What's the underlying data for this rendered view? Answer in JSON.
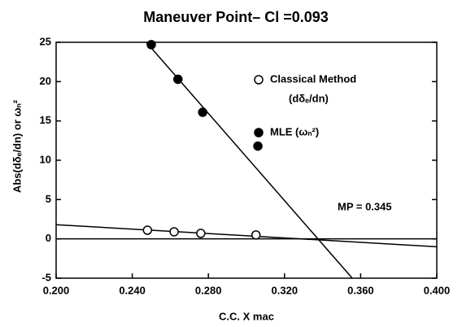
{
  "chart_data": {
    "type": "scatter",
    "title": "Maneuver Point– Cl =0.093",
    "xlabel": "C.C. X mac",
    "ylabel": "Abs(dδₑ/dn) or ωₙ²",
    "xlim": [
      0.2,
      0.4
    ],
    "ylim": [
      -5,
      25
    ],
    "xticks": [
      {
        "value": 0.2,
        "label": "0.200"
      },
      {
        "value": 0.24,
        "label": "0.240"
      },
      {
        "value": 0.28,
        "label": "0.280"
      },
      {
        "value": 0.32,
        "label": "0.320"
      },
      {
        "value": 0.36,
        "label": "0.360"
      },
      {
        "value": 0.4,
        "label": "0.400"
      }
    ],
    "yticks": [
      -5,
      0,
      5,
      10,
      15,
      20,
      25
    ],
    "series": [
      {
        "name": "Classical Method",
        "name_sub": "(dδₑ/dn)",
        "color": "#000000",
        "marker": "open",
        "x": [
          0.248,
          0.262,
          0.276,
          0.305
        ],
        "values": [
          1.1,
          0.9,
          0.7,
          0.5
        ]
      },
      {
        "name": "MLE (ωₙ²)",
        "color": "#000000",
        "marker": "filled",
        "x": [
          0.25,
          0.264,
          0.277,
          0.306
        ],
        "values": [
          24.7,
          20.3,
          16.1,
          11.8
        ]
      }
    ],
    "fit_lines": [
      {
        "x": [
          0.2474,
          0.3556
        ],
        "values": [
          25,
          -5
        ]
      },
      {
        "x": [
          0.2,
          0.4
        ],
        "values": [
          1.8,
          -1.0
        ]
      }
    ],
    "hlines": [
      0
    ],
    "annotation": "MP = 0.345"
  }
}
